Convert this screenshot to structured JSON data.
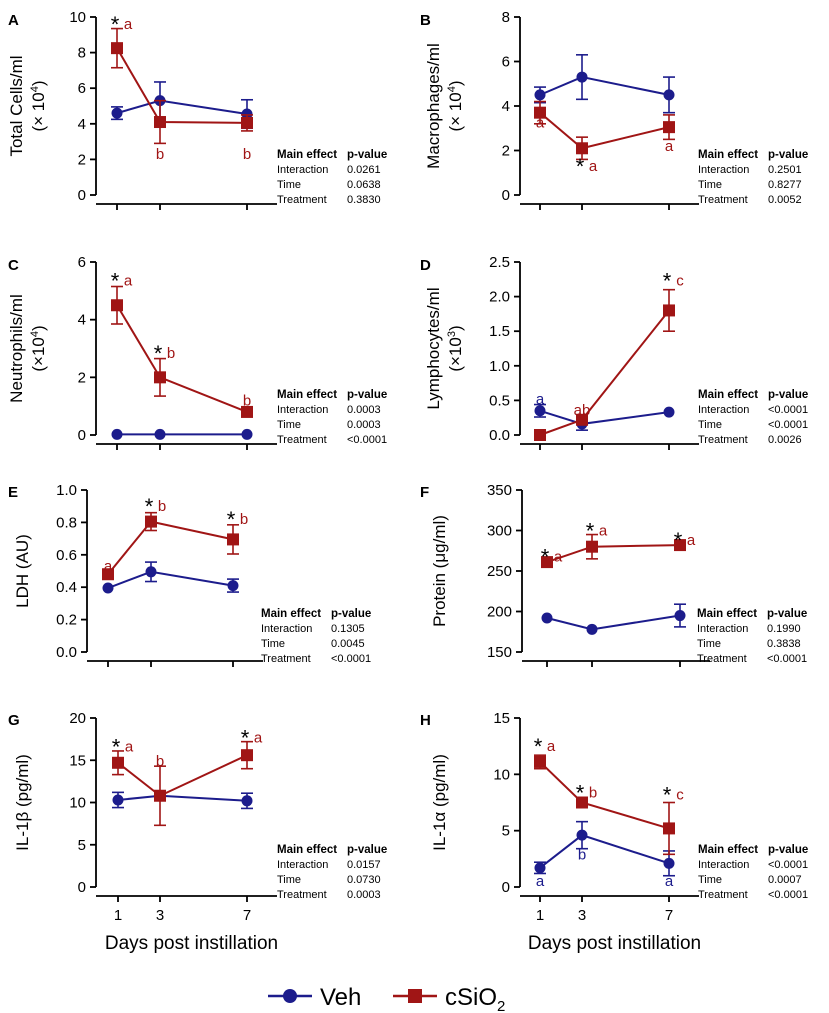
{
  "colors": {
    "veh": "#1c1c8c",
    "sio2": "#a01515",
    "axis": "#000000"
  },
  "legend": {
    "veh": "Veh",
    "sio2_main": "cSiO",
    "sio2_sub": "2"
  },
  "xlabel": "Days post instillation",
  "stats_header": {
    "effect": "Main effect",
    "pvalue": "p-value"
  },
  "chart_data": [
    {
      "panel": "A",
      "type": "line",
      "title": "",
      "ylabel": [
        "Total Cells/ml",
        "(× 10",
        "4",
        ")"
      ],
      "ylim": [
        0,
        10
      ],
      "yticks": [
        0,
        2,
        4,
        6,
        8,
        10
      ],
      "ytick_labels": [
        "0",
        "2",
        "4",
        "6",
        "8",
        "10"
      ],
      "x": [
        1,
        3,
        7
      ],
      "series": [
        {
          "name": "Veh",
          "values": [
            4.6,
            5.3,
            4.55
          ],
          "errors": [
            0.35,
            1.05,
            0.8
          ]
        },
        {
          "name": "cSiO2",
          "values": [
            8.25,
            4.1,
            4.05
          ],
          "errors": [
            1.1,
            1.2,
            0.45
          ]
        }
      ],
      "annotations": [
        {
          "text": "*",
          "x": 1,
          "y": 9.6,
          "series": "star"
        },
        {
          "text": "a",
          "x": 1,
          "y": 9.6,
          "series": "cSiO2"
        },
        {
          "text": "b",
          "x": 3,
          "y": 2.3,
          "series": "cSiO2"
        },
        {
          "text": "b",
          "x": 7,
          "y": 2.3,
          "series": "cSiO2"
        }
      ],
      "stats": [
        {
          "effect": "Interaction",
          "p": "0.0261"
        },
        {
          "effect": "Time",
          "p": "0.0638"
        },
        {
          "effect": "Treatment",
          "p": "0.3830"
        }
      ]
    },
    {
      "panel": "B",
      "type": "line",
      "title": "",
      "ylabel": [
        "Macrophages/ml",
        "(× 10",
        "4",
        ")"
      ],
      "ylim": [
        0,
        8
      ],
      "yticks": [
        0,
        2,
        4,
        6,
        8
      ],
      "ytick_labels": [
        "0",
        "2",
        "4",
        "6",
        "8"
      ],
      "x": [
        1,
        3,
        7
      ],
      "series": [
        {
          "name": "Veh",
          "values": [
            4.5,
            5.3,
            4.5
          ],
          "errors": [
            0.35,
            1.0,
            0.8
          ]
        },
        {
          "name": "cSiO2",
          "values": [
            3.7,
            2.1,
            3.05
          ],
          "errors": [
            0.5,
            0.5,
            0.55
          ]
        }
      ],
      "annotations": [
        {
          "text": "a",
          "x": 1,
          "y": 3.25,
          "series": "cSiO2",
          "below": true
        },
        {
          "text": "*",
          "x": 3,
          "y": 1.3,
          "series": "star",
          "below": true
        },
        {
          "text": "a",
          "x": 3,
          "y": 1.3,
          "series": "cSiO2",
          "below": true
        },
        {
          "text": "a",
          "x": 7,
          "y": 2.2,
          "series": "cSiO2",
          "below": true
        }
      ],
      "stats": [
        {
          "effect": "Interaction",
          "p": "0.2501"
        },
        {
          "effect": "Time",
          "p": "0.8277"
        },
        {
          "effect": "Treatment",
          "p": "0.0052"
        }
      ]
    },
    {
      "panel": "C",
      "type": "line",
      "title": "",
      "ylabel": [
        "Neutrophils/ml",
        "(×10",
        "4",
        ")"
      ],
      "ylim": [
        0,
        6
      ],
      "yticks": [
        0,
        2,
        4,
        6
      ],
      "ytick_labels": [
        "0",
        "2",
        "4",
        "6"
      ],
      "x": [
        1,
        3,
        7
      ],
      "series": [
        {
          "name": "Veh",
          "values": [
            0.02,
            0.02,
            0.02
          ],
          "errors": [
            0,
            0,
            0
          ]
        },
        {
          "name": "cSiO2",
          "values": [
            4.5,
            2.0,
            0.8
          ],
          "errors": [
            0.65,
            0.65,
            0
          ]
        }
      ],
      "annotations": [
        {
          "text": "*",
          "x": 1,
          "y": 5.35,
          "series": "star"
        },
        {
          "text": "a",
          "x": 1,
          "y": 5.35,
          "series": "cSiO2"
        },
        {
          "text": "*",
          "x": 3,
          "y": 2.85,
          "series": "star"
        },
        {
          "text": "b",
          "x": 3,
          "y": 2.85,
          "series": "cSiO2"
        },
        {
          "text": "b",
          "x": 7,
          "y": 1.2,
          "series": "cSiO2"
        }
      ],
      "stats": [
        {
          "effect": "Interaction",
          "p": "0.0003"
        },
        {
          "effect": "Time",
          "p": "0.0003"
        },
        {
          "effect": "Treatment",
          "p": "<0.0001"
        }
      ]
    },
    {
      "panel": "D",
      "type": "line",
      "title": "",
      "ylabel": [
        "Lymphocytes/ml",
        "(×10",
        "3",
        ")"
      ],
      "ylim": [
        0,
        2.5
      ],
      "yticks": [
        0,
        0.5,
        1.0,
        1.5,
        2.0,
        2.5
      ],
      "ytick_labels": [
        "0.0",
        "0.5",
        "1.0",
        "1.5",
        "2.0",
        "2.5"
      ],
      "x": [
        1,
        3,
        7
      ],
      "series": [
        {
          "name": "Veh",
          "values": [
            0.35,
            0.16,
            0.33
          ],
          "errors": [
            0.09,
            0.09,
            0
          ]
        },
        {
          "name": "cSiO2",
          "values": [
            0.0,
            0.22,
            1.8
          ],
          "errors": [
            0,
            0.05,
            0.3
          ]
        }
      ],
      "annotations": [
        {
          "text": "a",
          "x": 1,
          "y": 0.52,
          "series": "Veh"
        },
        {
          "text": "ab",
          "x": 3,
          "y": 0.36,
          "series": "cSiO2"
        },
        {
          "text": "*",
          "x": 7,
          "y": 2.23,
          "series": "star"
        },
        {
          "text": "c",
          "x": 7,
          "y": 2.23,
          "series": "cSiO2"
        }
      ],
      "stats": [
        {
          "effect": "Interaction",
          "p": "<0.0001"
        },
        {
          "effect": "Time",
          "p": "<0.0001"
        },
        {
          "effect": "Treatment",
          "p": "0.0026"
        }
      ]
    },
    {
      "panel": "E",
      "type": "line",
      "title": "",
      "ylabel": [
        "LDH (AU)"
      ],
      "ylim": [
        0,
        1.0
      ],
      "yticks": [
        0,
        0.2,
        0.4,
        0.6,
        0.8,
        1.0
      ],
      "ytick_labels": [
        "0.0",
        "0.2",
        "0.4",
        "0.6",
        "0.8",
        "1.0"
      ],
      "x": [
        1,
        3,
        7
      ],
      "series": [
        {
          "name": "Veh",
          "values": [
            0.395,
            0.495,
            0.41
          ],
          "errors": [
            0,
            0.06,
            0.04
          ]
        },
        {
          "name": "cSiO2",
          "values": [
            0.48,
            0.805,
            0.695
          ],
          "errors": [
            0,
            0.055,
            0.09
          ]
        }
      ],
      "annotations": [
        {
          "text": "a",
          "x": 1,
          "y": 0.53,
          "series": "cSiO2"
        },
        {
          "text": "*",
          "x": 3,
          "y": 0.9,
          "series": "star"
        },
        {
          "text": "b",
          "x": 3,
          "y": 0.9,
          "series": "cSiO2"
        },
        {
          "text": "*",
          "x": 7,
          "y": 0.82,
          "series": "star"
        },
        {
          "text": "b",
          "x": 7,
          "y": 0.82,
          "series": "cSiO2"
        }
      ],
      "stats": [
        {
          "effect": "Interaction",
          "p": "0.1305"
        },
        {
          "effect": "Time",
          "p": "0.0045"
        },
        {
          "effect": "Treatment",
          "p": "<0.0001"
        }
      ]
    },
    {
      "panel": "F",
      "type": "line",
      "title": "",
      "ylabel": [
        "Protein (μg/ml)"
      ],
      "ylim": [
        150,
        350
      ],
      "yticks": [
        150,
        200,
        250,
        300,
        350
      ],
      "ytick_labels": [
        "150",
        "200",
        "250",
        "300",
        "350"
      ],
      "x": [
        1,
        3,
        7
      ],
      "series": [
        {
          "name": "Veh",
          "values": [
            192,
            178,
            195
          ],
          "errors": [
            0,
            0,
            14
          ]
        },
        {
          "name": "cSiO2",
          "values": [
            261,
            280,
            282
          ],
          "errors": [
            0,
            15,
            0
          ]
        }
      ],
      "annotations": [
        {
          "text": "*",
          "x": 1,
          "y": 268,
          "series": "star"
        },
        {
          "text": "a",
          "x": 1,
          "y": 268,
          "series": "cSiO2"
        },
        {
          "text": "*",
          "x": 3,
          "y": 300,
          "series": "star"
        },
        {
          "text": "a",
          "x": 3,
          "y": 300,
          "series": "cSiO2"
        },
        {
          "text": "*",
          "x": 7,
          "y": 288,
          "series": "star"
        },
        {
          "text": "a",
          "x": 7,
          "y": 288,
          "series": "cSiO2"
        }
      ],
      "stats": [
        {
          "effect": "Interaction",
          "p": "0.1990"
        },
        {
          "effect": "Time",
          "p": "0.3838"
        },
        {
          "effect": "Treatment",
          "p": "<0.0001"
        }
      ]
    },
    {
      "panel": "G",
      "type": "line",
      "title": "",
      "ylabel": [
        "IL-1β (pg/ml)"
      ],
      "ylim": [
        0,
        20
      ],
      "yticks": [
        0,
        5,
        10,
        15,
        20
      ],
      "ytick_labels": [
        "0",
        "5",
        "10",
        "15",
        "20"
      ],
      "x": [
        1,
        3,
        7
      ],
      "xtick_labels": [
        "1",
        "3",
        "7"
      ],
      "series": [
        {
          "name": "Veh",
          "values": [
            10.3,
            10.8,
            10.2
          ],
          "errors": [
            0.9,
            0.4,
            0.9
          ]
        },
        {
          "name": "cSiO2",
          "values": [
            14.7,
            10.8,
            15.6
          ],
          "errors": [
            1.4,
            3.5,
            1.6
          ]
        }
      ],
      "annotations": [
        {
          "text": "*",
          "x": 1,
          "y": 16.6,
          "series": "star"
        },
        {
          "text": "a",
          "x": 1,
          "y": 16.6,
          "series": "cSiO2"
        },
        {
          "text": "b",
          "x": 3,
          "y": 14.9,
          "series": "cSiO2"
        },
        {
          "text": "*",
          "x": 7,
          "y": 17.7,
          "series": "star"
        },
        {
          "text": "a",
          "x": 7,
          "y": 17.7,
          "series": "cSiO2"
        }
      ],
      "stats": [
        {
          "effect": "Interaction",
          "p": "0.0157"
        },
        {
          "effect": "Time",
          "p": "0.0730"
        },
        {
          "effect": "Treatment",
          "p": "0.0003"
        }
      ]
    },
    {
      "panel": "H",
      "type": "line",
      "title": "",
      "ylabel": [
        "IL-1α (pg/ml)"
      ],
      "ylim": [
        0,
        15
      ],
      "yticks": [
        0,
        5,
        10,
        15
      ],
      "ytick_labels": [
        "0",
        "5",
        "10",
        "15"
      ],
      "x": [
        1,
        3,
        7
      ],
      "xtick_labels": [
        "1",
        "3",
        "7"
      ],
      "series": [
        {
          "name": "Veh",
          "values": [
            1.7,
            4.6,
            2.1
          ],
          "errors": [
            0.5,
            1.2,
            1.1
          ]
        },
        {
          "name": "cSiO2",
          "values": [
            11.1,
            7.5,
            5.2
          ],
          "errors": [
            0.6,
            0.3,
            2.3
          ]
        }
      ],
      "annotations": [
        {
          "text": "*",
          "x": 1,
          "y": 12.5,
          "series": "star"
        },
        {
          "text": "a",
          "x": 1,
          "y": 12.5,
          "series": "cSiO2"
        },
        {
          "text": "a",
          "x": 1,
          "y": 0.55,
          "series": "Veh",
          "below": true
        },
        {
          "text": "*",
          "x": 3,
          "y": 8.4,
          "series": "star"
        },
        {
          "text": "b",
          "x": 3,
          "y": 8.4,
          "series": "cSiO2"
        },
        {
          "text": "b",
          "x": 3,
          "y": 2.9,
          "series": "Veh",
          "below": true
        },
        {
          "text": "*",
          "x": 7,
          "y": 8.2,
          "series": "star"
        },
        {
          "text": "c",
          "x": 7,
          "y": 8.2,
          "series": "cSiO2"
        },
        {
          "text": "a",
          "x": 7,
          "y": 0.55,
          "series": "Veh",
          "below": true
        }
      ],
      "stats": [
        {
          "effect": "Interaction",
          "p": "<0.0001"
        },
        {
          "effect": "Time",
          "p": "0.0007"
        },
        {
          "effect": "Treatment",
          "p": "<0.0001"
        }
      ]
    }
  ]
}
